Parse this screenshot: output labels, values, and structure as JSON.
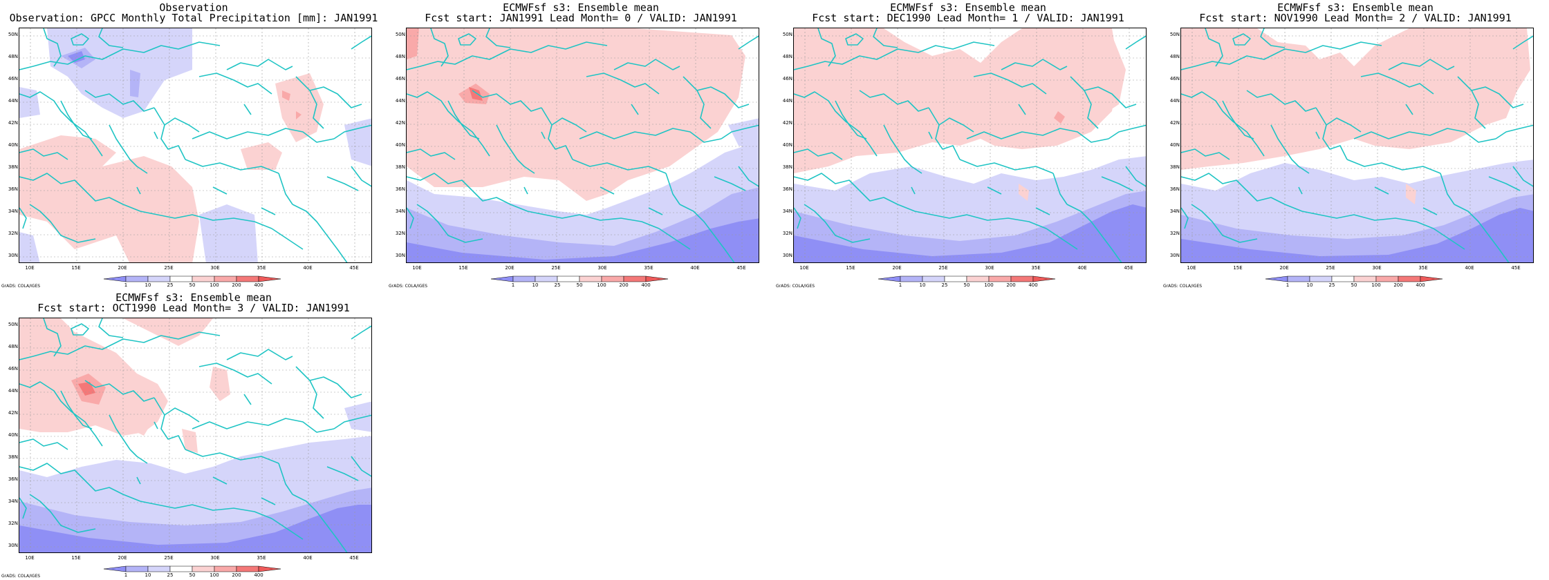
{
  "map_data": {
    "lat_labels": [
      "50N",
      "48N",
      "46N",
      "44N",
      "42N",
      "40N",
      "38N",
      "36N",
      "34N",
      "32N",
      "30N"
    ],
    "lon_labels": [
      "10E",
      "15E",
      "20E",
      "25E",
      "30E",
      "35E",
      "40E",
      "45E"
    ],
    "colorbar": {
      "levels": [
        "1",
        "10",
        "25",
        "50",
        "100",
        "200",
        "400"
      ],
      "colors": [
        "#8f8ff5",
        "#b4b4f7",
        "#d5d5fa",
        "#ffffff",
        "#fbd2d2",
        "#f9a9a9",
        "#f47878",
        "#ee5a5a"
      ]
    },
    "credit": "GrADS: COLA/IGES",
    "coast_color": "#1fc4c4"
  },
  "panels": [
    {
      "title1": "Observation",
      "title2": "Observation: GPCC Monthly Total Precipitation [mm]: JAN1991",
      "variant": "obs"
    },
    {
      "title1": "ECMWFsf s3: Ensemble mean",
      "title2": "Fcst start: JAN1991  Lead Month= 0 / VALID: JAN1991",
      "variant": "lead0"
    },
    {
      "title1": "ECMWFsf s3: Ensemble mean",
      "title2": "Fcst start: DEC1990  Lead Month= 1 / VALID: JAN1991",
      "variant": "lead1"
    },
    {
      "title1": "ECMWFsf s3: Ensemble mean",
      "title2": "Fcst start: NOV1990  Lead Month= 2 / VALID: JAN1991",
      "variant": "lead2"
    },
    {
      "title1": "ECMWFsf s3: Ensemble mean",
      "title2": "Fcst start: OCT1990  Lead Month= 3 / VALID: JAN1991",
      "variant": "lead3"
    }
  ]
}
